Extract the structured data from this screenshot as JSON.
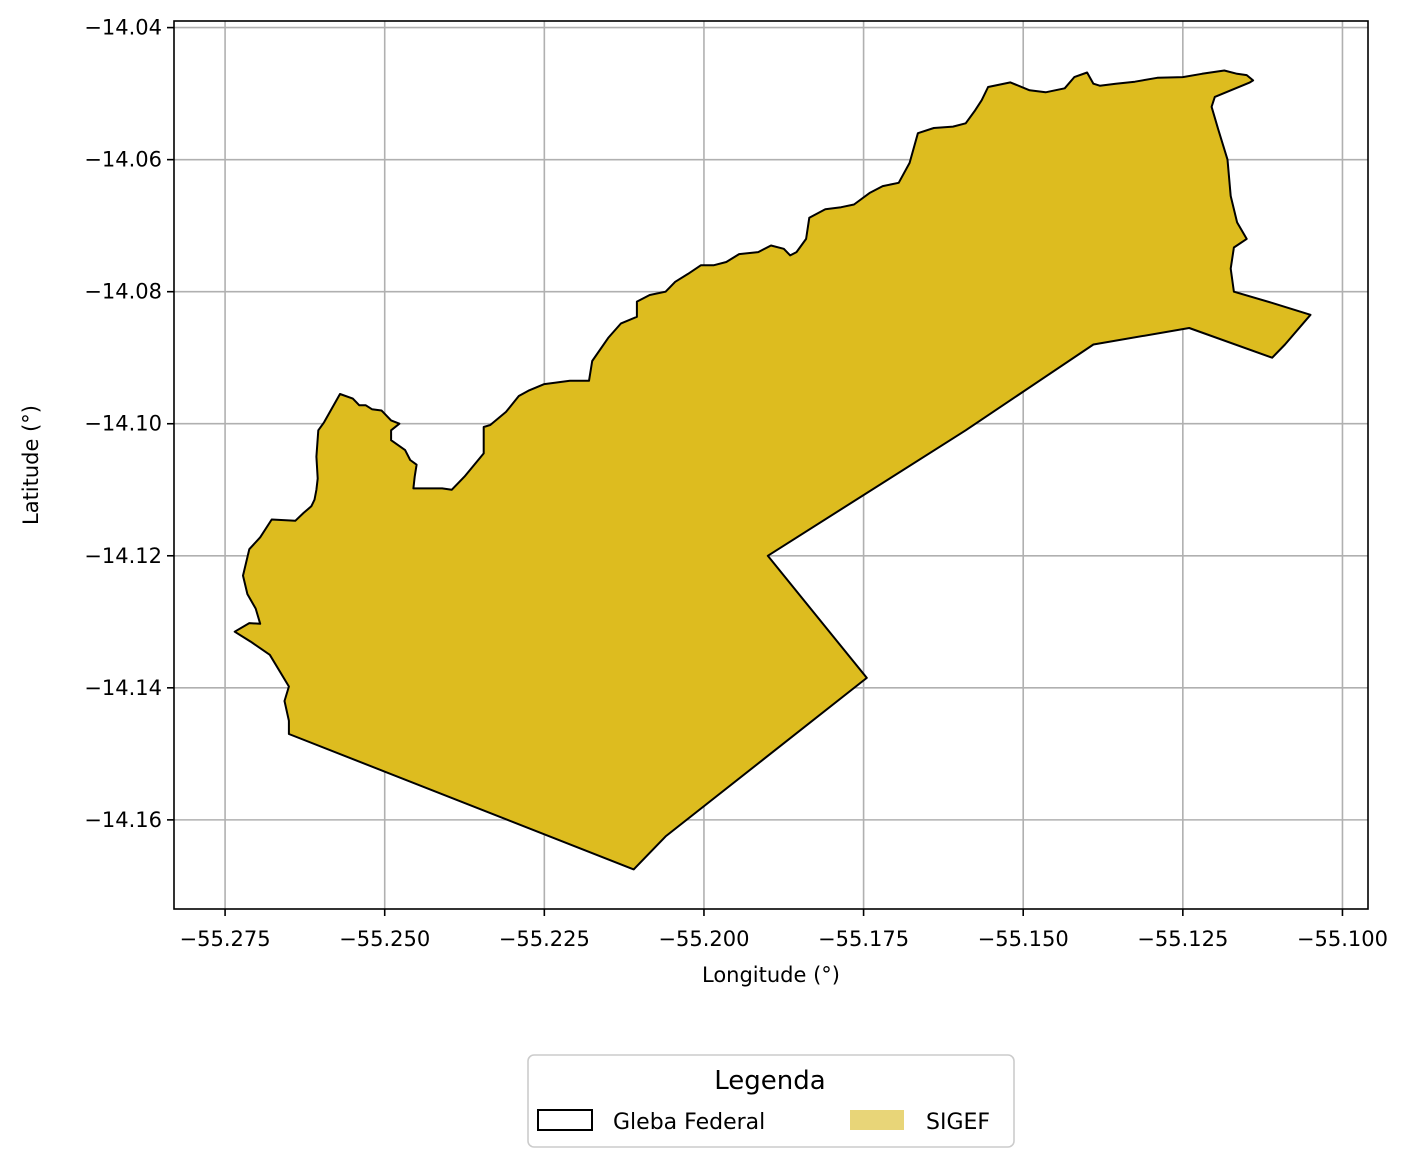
{
  "chart_data": {
    "type": "map",
    "xlabel": "Longitude (°)",
    "ylabel": "Latitude (°)",
    "xlim": [
      -55.283,
      -55.096
    ],
    "ylim": [
      -14.1735,
      -14.039
    ],
    "xticks": [
      -55.275,
      -55.25,
      -55.225,
      -55.2,
      -55.175,
      -55.15,
      -55.125,
      -55.1
    ],
    "xtick_labels": [
      "−55.275",
      "−55.250",
      "−55.225",
      "−55.200",
      "−55.175",
      "−55.150",
      "−55.125",
      "−55.100"
    ],
    "yticks": [
      -14.04,
      -14.06,
      -14.08,
      -14.1,
      -14.12,
      -14.14,
      -14.16
    ],
    "ytick_labels": [
      "−14.04",
      "−14.06",
      "−14.08",
      "−14.10",
      "−14.12",
      "−14.14",
      "−14.16"
    ],
    "grid": true,
    "legend": {
      "title": "Legenda",
      "placement": "bottom-center",
      "entries": [
        {
          "label": "Gleba Federal",
          "style": "outline",
          "color": "#000000"
        },
        {
          "label": "SIGEF",
          "style": "fill",
          "color": "#e8d578"
        }
      ]
    },
    "polygon_fill": "#ddbc1f",
    "polygon_edge": "#000000",
    "polygon": [
      [
        -55.2735,
        -14.1315
      ],
      [
        -55.2712,
        -14.1302
      ],
      [
        -55.2695,
        -14.1303
      ],
      [
        -55.2702,
        -14.128
      ],
      [
        -55.2715,
        -14.1258
      ],
      [
        -55.2722,
        -14.123
      ],
      [
        -55.2712,
        -14.119
      ],
      [
        -55.2695,
        -14.1172
      ],
      [
        -55.2677,
        -14.1145
      ],
      [
        -55.264,
        -14.1147
      ],
      [
        -55.2627,
        -14.1135
      ],
      [
        -55.2615,
        -14.1125
      ],
      [
        -55.261,
        -14.1115
      ],
      [
        -55.2607,
        -14.11
      ],
      [
        -55.2605,
        -14.1083
      ],
      [
        -55.2607,
        -14.105
      ],
      [
        -55.2604,
        -14.101
      ],
      [
        -55.2595,
        -14.0998
      ],
      [
        -55.257,
        -14.0955
      ],
      [
        -55.255,
        -14.0962
      ],
      [
        -55.254,
        -14.0972
      ],
      [
        -55.253,
        -14.0972
      ],
      [
        -55.252,
        -14.0978
      ],
      [
        -55.2505,
        -14.098
      ],
      [
        -55.249,
        -14.0995
      ],
      [
        -55.2477,
        -14.1
      ],
      [
        -55.249,
        -14.101
      ],
      [
        -55.249,
        -14.1025
      ],
      [
        -55.2468,
        -14.104
      ],
      [
        -55.246,
        -14.1055
      ],
      [
        -55.245,
        -14.1062
      ],
      [
        -55.2453,
        -14.108
      ],
      [
        -55.2455,
        -14.1098
      ],
      [
        -55.241,
        -14.1098
      ],
      [
        -55.2395,
        -14.11
      ],
      [
        -55.2375,
        -14.108
      ],
      [
        -55.2345,
        -14.1045
      ],
      [
        -55.2345,
        -14.1005
      ],
      [
        -55.2335,
        -14.1002
      ],
      [
        -55.231,
        -14.0982
      ],
      [
        -55.229,
        -14.0958
      ],
      [
        -55.2275,
        -14.095
      ],
      [
        -55.225,
        -14.094
      ],
      [
        -55.221,
        -14.0935
      ],
      [
        -55.218,
        -14.0935
      ],
      [
        -55.2175,
        -14.0905
      ],
      [
        -55.215,
        -14.087
      ],
      [
        -55.213,
        -14.0848
      ],
      [
        -55.2105,
        -14.0838
      ],
      [
        -55.2105,
        -14.0815
      ],
      [
        -55.2085,
        -14.0805
      ],
      [
        -55.206,
        -14.08
      ],
      [
        -55.2045,
        -14.0785
      ],
      [
        -55.2025,
        -14.0773
      ],
      [
        -55.2005,
        -14.076
      ],
      [
        -55.1985,
        -14.076
      ],
      [
        -55.1965,
        -14.0755
      ],
      [
        -55.1945,
        -14.0743
      ],
      [
        -55.1915,
        -14.074
      ],
      [
        -55.1895,
        -14.073
      ],
      [
        -55.1875,
        -14.0735
      ],
      [
        -55.1865,
        -14.0745
      ],
      [
        -55.1855,
        -14.074
      ],
      [
        -55.184,
        -14.072
      ],
      [
        -55.1835,
        -14.0688
      ],
      [
        -55.181,
        -14.0675
      ],
      [
        -55.1785,
        -14.0672
      ],
      [
        -55.1765,
        -14.0668
      ],
      [
        -55.174,
        -14.065
      ],
      [
        -55.172,
        -14.064
      ],
      [
        -55.1695,
        -14.0635
      ],
      [
        -55.1678,
        -14.0605
      ],
      [
        -55.1665,
        -14.056
      ],
      [
        -55.164,
        -14.0552
      ],
      [
        -55.161,
        -14.055
      ],
      [
        -55.159,
        -14.0545
      ],
      [
        -55.1575,
        -14.0525
      ],
      [
        -55.1565,
        -14.051
      ],
      [
        -55.1555,
        -14.049
      ],
      [
        -55.152,
        -14.0483
      ],
      [
        -55.149,
        -14.0495
      ],
      [
        -55.1465,
        -14.0498
      ],
      [
        -55.1435,
        -14.0492
      ],
      [
        -55.142,
        -14.0475
      ],
      [
        -55.14,
        -14.0468
      ],
      [
        -55.139,
        -14.0485
      ],
      [
        -55.138,
        -14.0488
      ],
      [
        -55.1355,
        -14.0485
      ],
      [
        -55.1325,
        -14.0482
      ],
      [
        -55.129,
        -14.0476
      ],
      [
        -55.125,
        -14.0475
      ],
      [
        -55.122,
        -14.047
      ],
      [
        -55.1185,
        -14.0465
      ],
      [
        -55.1165,
        -14.047
      ],
      [
        -55.115,
        -14.0472
      ],
      [
        -55.114,
        -14.048
      ],
      [
        -55.1145,
        -14.0483
      ],
      [
        -55.12,
        -14.0505
      ],
      [
        -55.1205,
        -14.052
      ],
      [
        -55.1195,
        -14.0553
      ],
      [
        -55.118,
        -14.06
      ],
      [
        -55.1175,
        -14.0655
      ],
      [
        -55.1165,
        -14.0695
      ],
      [
        -55.115,
        -14.072
      ],
      [
        -55.117,
        -14.0733
      ],
      [
        -55.1175,
        -14.0765
      ],
      [
        -55.117,
        -14.08
      ],
      [
        -55.111,
        -14.0817
      ],
      [
        -55.105,
        -14.0835
      ],
      [
        -55.109,
        -14.088
      ],
      [
        -55.111,
        -14.09
      ],
      [
        -55.124,
        -14.0855
      ],
      [
        -55.139,
        -14.088
      ],
      [
        -55.159,
        -14.101
      ],
      [
        -55.19,
        -14.12
      ],
      [
        -55.1745,
        -14.1385
      ],
      [
        -55.206,
        -14.1625
      ],
      [
        -55.211,
        -14.1675
      ],
      [
        -55.265,
        -14.147
      ],
      [
        -55.265,
        -14.145
      ],
      [
        -55.2657,
        -14.142
      ],
      [
        -55.265,
        -14.1398
      ],
      [
        -55.268,
        -14.135
      ],
      [
        -55.271,
        -14.133
      ],
      [
        -55.2735,
        -14.1315
      ]
    ]
  }
}
